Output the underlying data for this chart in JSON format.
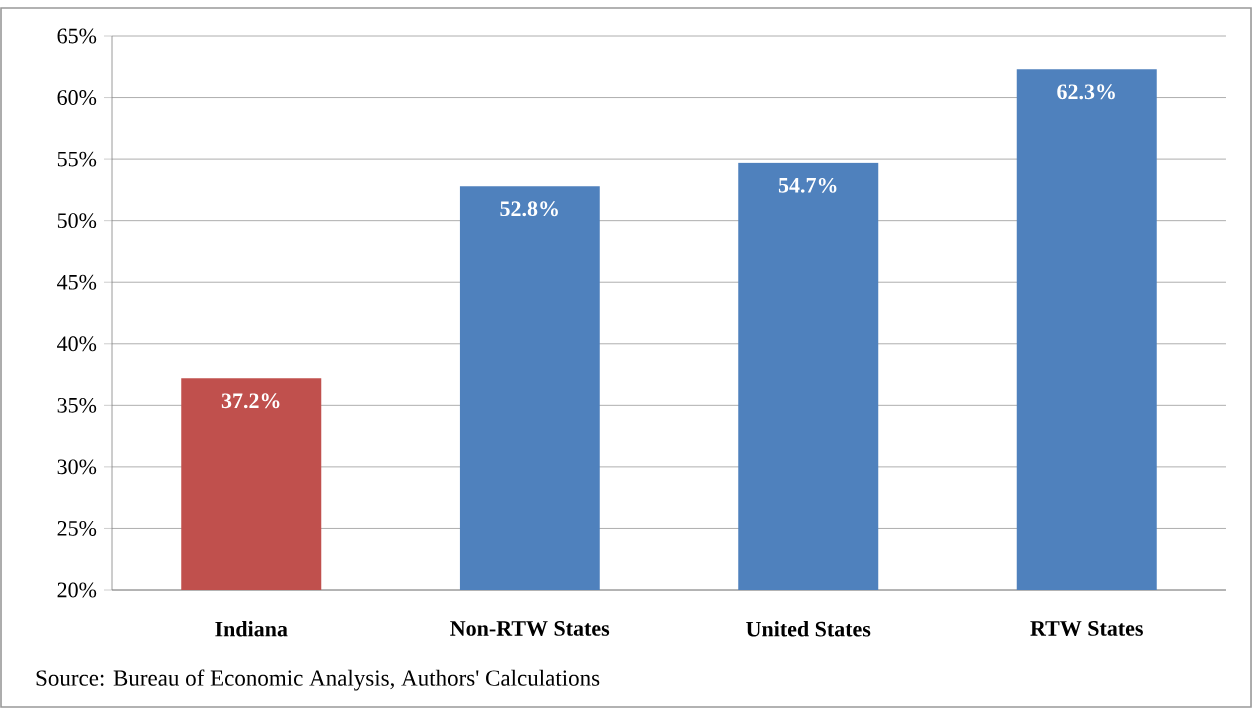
{
  "chart_data": {
    "type": "bar",
    "categories": [
      "Indiana",
      "Non-RTW States",
      "United States",
      "RTW States"
    ],
    "values": [
      37.2,
      52.8,
      54.7,
      62.3
    ],
    "colors": [
      "#c0504d",
      "#4f81bd",
      "#4f81bd",
      "#4f81bd"
    ],
    "value_labels": [
      "37.2%",
      "52.8%",
      "54.7%",
      "62.3%"
    ],
    "ylim": [
      20,
      65
    ],
    "yticks": [
      {
        "value": 20,
        "label": "20%"
      },
      {
        "value": 25,
        "label": "25%"
      },
      {
        "value": 30,
        "label": "30%"
      },
      {
        "value": 35,
        "label": "35%"
      },
      {
        "value": 40,
        "label": "40%"
      },
      {
        "value": 45,
        "label": "45%"
      },
      {
        "value": 50,
        "label": "50%"
      },
      {
        "value": 55,
        "label": "55%"
      },
      {
        "value": 60,
        "label": "60%"
      },
      {
        "value": 65,
        "label": "65%"
      }
    ],
    "grid": "y",
    "annotations": [
      "Source: Bureau of Economic Analysis, Authors' Calculations"
    ]
  }
}
